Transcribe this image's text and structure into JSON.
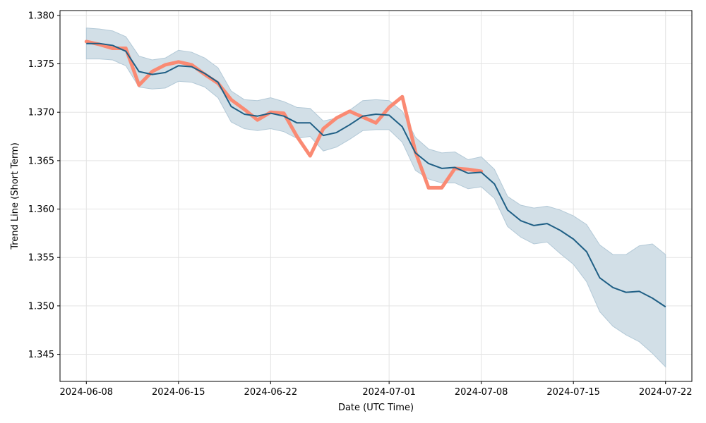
{
  "chart_data": {
    "type": "line",
    "xlabel": "Date (UTC Time)",
    "ylabel": "Trend Line (Short Term)",
    "grid": true,
    "xlim": [
      "2024-06-06",
      "2024-07-24"
    ],
    "ylim": [
      1.3422,
      1.3805
    ],
    "x_ticks": [
      "2024-06-08",
      "2024-06-15",
      "2024-06-22",
      "2024-07-01",
      "2024-07-08",
      "2024-07-15",
      "2024-07-22"
    ],
    "y_ticks": [
      "1.345",
      "1.350",
      "1.355",
      "1.360",
      "1.365",
      "1.370",
      "1.375",
      "1.380"
    ],
    "colors": {
      "trend": "#1f5f85",
      "actual": "#fa8a73",
      "band": "#d2dfe7",
      "band_edge": "#b3c9d7",
      "grid": "#e3e3e3"
    },
    "dates": [
      "2024-06-08",
      "2024-06-09",
      "2024-06-10",
      "2024-06-11",
      "2024-06-12",
      "2024-06-13",
      "2024-06-14",
      "2024-06-15",
      "2024-06-16",
      "2024-06-17",
      "2024-06-18",
      "2024-06-19",
      "2024-06-20",
      "2024-06-21",
      "2024-06-22",
      "2024-06-23",
      "2024-06-24",
      "2024-06-25",
      "2024-06-26",
      "2024-06-27",
      "2024-06-28",
      "2024-06-29",
      "2024-06-30",
      "2024-07-01",
      "2024-07-02",
      "2024-07-03",
      "2024-07-04",
      "2024-07-05",
      "2024-07-06",
      "2024-07-07",
      "2024-07-08",
      "2024-07-09",
      "2024-07-10",
      "2024-07-11",
      "2024-07-12",
      "2024-07-13",
      "2024-07-14",
      "2024-07-15",
      "2024-07-16",
      "2024-07-17",
      "2024-07-18",
      "2024-07-19",
      "2024-07-20",
      "2024-07-21",
      "2024-07-22"
    ],
    "trend": [
      1.3771,
      1.3771,
      1.3769,
      1.3763,
      1.3742,
      1.3739,
      1.3741,
      1.3748,
      1.3747,
      1.374,
      1.3731,
      1.3706,
      1.3698,
      1.3696,
      1.3699,
      1.3696,
      1.3689,
      1.3689,
      1.3676,
      1.3679,
      1.3687,
      1.3696,
      1.3698,
      1.3697,
      1.3685,
      1.3658,
      1.3647,
      1.3642,
      1.3643,
      1.3637,
      1.3638,
      1.3626,
      1.3599,
      1.3588,
      1.3583,
      1.3585,
      1.3578,
      1.3569,
      1.3556,
      1.3529,
      1.3519,
      1.3514,
      1.3515,
      1.3508,
      1.3499
    ],
    "upper": [
      1.3787,
      1.3786,
      1.3784,
      1.3778,
      1.3758,
      1.3754,
      1.3756,
      1.3764,
      1.3762,
      1.3756,
      1.3746,
      1.3722,
      1.3713,
      1.3712,
      1.3715,
      1.3711,
      1.3705,
      1.3704,
      1.3691,
      1.3694,
      1.3702,
      1.3712,
      1.3713,
      1.3712,
      1.3701,
      1.3674,
      1.3662,
      1.3658,
      1.3659,
      1.3651,
      1.3654,
      1.3641,
      1.3613,
      1.3604,
      1.3601,
      1.3603,
      1.3599,
      1.3593,
      1.3584,
      1.3563,
      1.3553,
      1.3553,
      1.3562,
      1.3564,
      1.3553
    ],
    "lower": [
      1.3755,
      1.3755,
      1.3754,
      1.3748,
      1.3726,
      1.3724,
      1.3725,
      1.3732,
      1.3731,
      1.3726,
      1.3715,
      1.369,
      1.3683,
      1.3681,
      1.3683,
      1.368,
      1.3673,
      1.3675,
      1.366,
      1.3664,
      1.3672,
      1.3681,
      1.3682,
      1.3682,
      1.3669,
      1.364,
      1.3631,
      1.3627,
      1.3627,
      1.3621,
      1.3623,
      1.3611,
      1.3582,
      1.3571,
      1.3564,
      1.3566,
      1.3554,
      1.3543,
      1.3525,
      1.3494,
      1.3479,
      1.347,
      1.3463,
      1.3451,
      1.3437
    ],
    "actual": [
      1.3773,
      1.377,
      1.3766,
      1.3766,
      1.3728,
      1.3742,
      1.3749,
      1.3752,
      1.3749,
      1.3739,
      1.373,
      1.3713,
      1.3703,
      1.3692,
      1.37,
      1.3699,
      1.3675,
      1.3655,
      1.3683,
      1.3694,
      1.3701,
      1.3695,
      1.3689,
      1.3705,
      1.3716,
      1.3659,
      1.3622,
      1.3622,
      1.3642,
      1.3641,
      1.3639
    ]
  }
}
